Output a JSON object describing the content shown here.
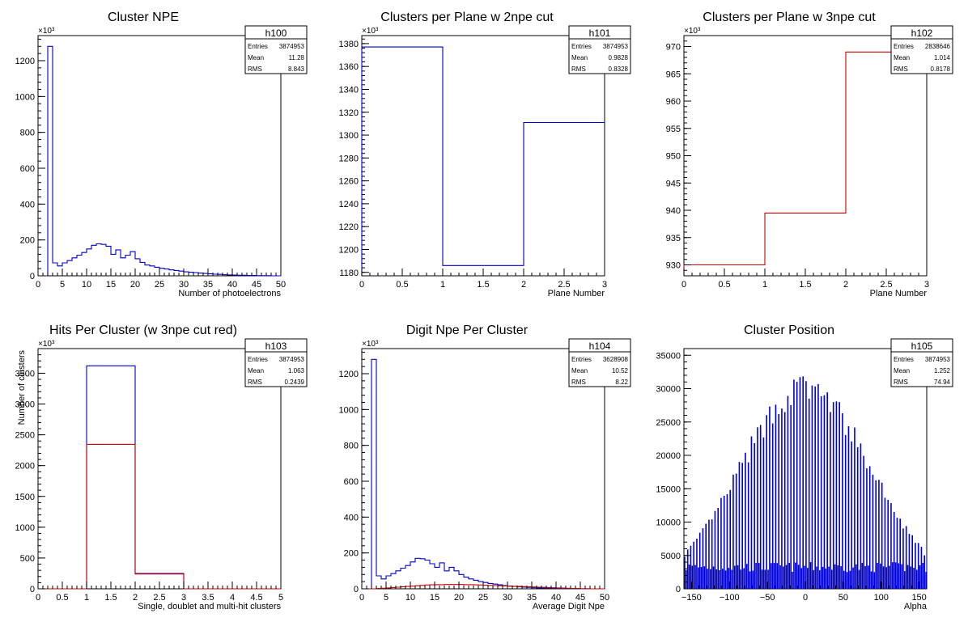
{
  "chart_data": [
    {
      "id": "h100",
      "type": "histogram",
      "title": "Cluster NPE",
      "xlabel": "Number of photoelectrons",
      "ylabel": "",
      "y_multiplier_label": "×10³",
      "x_ticks": [
        0,
        5,
        10,
        15,
        20,
        25,
        30,
        35,
        40,
        45,
        50
      ],
      "y_ticks": [
        0,
        200,
        400,
        600,
        800,
        1000,
        1200
      ],
      "xlim": [
        0,
        50
      ],
      "ylim": [
        0,
        1340
      ],
      "stats": {
        "name": "h100",
        "entries": "3874953",
        "mean": "11.28",
        "rms": "8.843"
      },
      "series": [
        {
          "color": "#0000cc",
          "bin_width": 1,
          "x_start": 0,
          "values": [
            0,
            0,
            1280,
            72,
            55,
            72,
            85,
            100,
            115,
            130,
            150,
            170,
            178,
            175,
            165,
            120,
            145,
            100,
            115,
            135,
            95,
            75,
            60,
            55,
            48,
            42,
            38,
            33,
            30,
            26,
            22,
            20,
            18,
            15,
            13,
            11,
            9,
            8,
            6,
            5,
            4,
            3,
            3,
            2,
            2,
            1,
            1,
            1,
            0,
            0
          ]
        }
      ]
    },
    {
      "id": "h101",
      "type": "histogram",
      "title": "Clusters per Plane w 2npe cut",
      "xlabel": "Plane Number",
      "ylabel": "",
      "y_multiplier_label": "×10³",
      "x_ticks": [
        0,
        0.5,
        1,
        1.5,
        2,
        2.5,
        3
      ],
      "y_ticks": [
        1180,
        1200,
        1220,
        1240,
        1260,
        1280,
        1300,
        1320,
        1340,
        1360,
        1380
      ],
      "xlim": [
        0,
        3
      ],
      "ylim": [
        1177,
        1387
      ],
      "stats": {
        "name": "h101",
        "entries": "3874953",
        "mean": "0.9828",
        "rms": "0.8328"
      },
      "series": [
        {
          "color": "#0000cc",
          "bin_width": 1,
          "x_start": 0,
          "values": [
            1377,
            1186,
            1311
          ]
        }
      ]
    },
    {
      "id": "h102",
      "type": "histogram",
      "title": "Clusters per Plane w 3npe cut",
      "xlabel": "Plane Number",
      "ylabel": "",
      "y_multiplier_label": "×10³",
      "x_ticks": [
        0,
        0.5,
        1,
        1.5,
        2,
        2.5,
        3
      ],
      "y_ticks": [
        930,
        935,
        940,
        945,
        950,
        955,
        960,
        965,
        970
      ],
      "xlim": [
        0,
        3
      ],
      "ylim": [
        928,
        972
      ],
      "stats": {
        "name": "h102",
        "entries": "2838646",
        "mean": "1.014",
        "rms": "0.8178"
      },
      "series": [
        {
          "color": "#cc0000",
          "bin_width": 1,
          "x_start": 0,
          "values": [
            930,
            939.5,
            969
          ]
        }
      ]
    },
    {
      "id": "h103",
      "type": "histogram",
      "title": "Hits Per Cluster (w 3npe cut red)",
      "xlabel": "Single, doublet and multi-hit clusters",
      "ylabel": "Number of clusters",
      "y_multiplier_label": "×10³",
      "x_ticks": [
        0,
        0.5,
        1,
        1.5,
        2,
        2.5,
        3,
        3.5,
        4,
        4.5,
        5
      ],
      "y_ticks": [
        0,
        500,
        1000,
        1500,
        2000,
        2500,
        3000,
        3500
      ],
      "xlim": [
        0,
        5
      ],
      "ylim": [
        0,
        3900
      ],
      "stats": {
        "name": "h103",
        "entries": "3874953",
        "mean": "1.063",
        "rms": "0.2439"
      },
      "series": [
        {
          "color": "#0000cc",
          "bin_width": 1,
          "x_start": 0,
          "values": [
            0,
            3620,
            250,
            0,
            0
          ]
        },
        {
          "color": "#cc0000",
          "bin_width": 1,
          "x_start": 0,
          "values": [
            0,
            2345,
            240,
            0,
            0
          ]
        }
      ]
    },
    {
      "id": "h104",
      "type": "histogram",
      "title": "Digit Npe Per Cluster",
      "xlabel": "Average Digit Npe",
      "ylabel": "",
      "y_multiplier_label": "×10³",
      "x_ticks": [
        0,
        5,
        10,
        15,
        20,
        25,
        30,
        35,
        40,
        45,
        50
      ],
      "y_ticks": [
        0,
        200,
        400,
        600,
        800,
        1000,
        1200
      ],
      "xlim": [
        0,
        50
      ],
      "ylim": [
        0,
        1340
      ],
      "stats": {
        "name": "h104",
        "entries": "3628908",
        "mean": "10.52",
        "rms": "8.22"
      },
      "series": [
        {
          "color": "#0000cc",
          "bin_width": 1,
          "x_start": 0,
          "values": [
            0,
            0,
            1280,
            72,
            55,
            72,
            85,
            100,
            115,
            130,
            150,
            170,
            168,
            160,
            140,
            120,
            145,
            100,
            120,
            100,
            80,
            65,
            55,
            48,
            40,
            35,
            30,
            26,
            22,
            18,
            15,
            13,
            11,
            9,
            8,
            6,
            5,
            4,
            3,
            3,
            2,
            2,
            1,
            1,
            1,
            0,
            0,
            0,
            0,
            0
          ]
        },
        {
          "color": "#cc0000",
          "bin_width": 1,
          "x_start": 0,
          "values": [
            0,
            0,
            0,
            2,
            3,
            5,
            7,
            9,
            11,
            13,
            15,
            17,
            19,
            21,
            22,
            23,
            23,
            24,
            24,
            24,
            24,
            23,
            23,
            22,
            21,
            20,
            19,
            18,
            17,
            16,
            15,
            14,
            13,
            12,
            11,
            10,
            9,
            8,
            7,
            6,
            5,
            4,
            3,
            2,
            2,
            1,
            1,
            0,
            0,
            0
          ]
        }
      ]
    },
    {
      "id": "h105",
      "type": "histogram",
      "title": "Cluster Position",
      "xlabel": "Alpha",
      "ylabel": "",
      "y_multiplier_label": "",
      "x_ticks": [
        -150,
        -100,
        -50,
        0,
        50,
        100,
        150
      ],
      "y_ticks": [
        0,
        5000,
        10000,
        15000,
        20000,
        25000,
        30000,
        35000
      ],
      "xlim": [
        -160,
        160
      ],
      "ylim": [
        0,
        36000
      ],
      "stats": {
        "name": "h105",
        "entries": "3874953",
        "mean": "1.252",
        "rms": "74.94"
      },
      "series": [
        {
          "color": "#0000cc",
          "style": "comb",
          "x_start": -160,
          "x_end": 160,
          "n_bins": 160,
          "peak": 30000,
          "sigma": 85,
          "low": 2500
        }
      ]
    }
  ]
}
